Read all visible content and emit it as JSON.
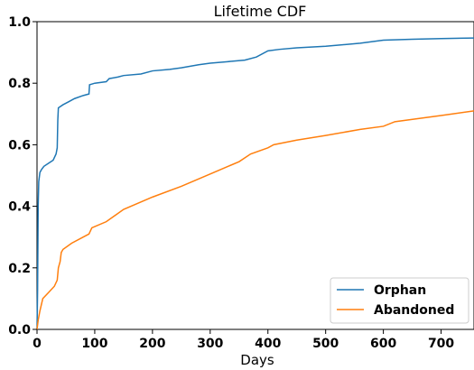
{
  "chart_data": {
    "type": "line",
    "title": "Lifetime CDF",
    "xlabel": "Days",
    "ylabel": "",
    "xlim": [
      0,
      757
    ],
    "ylim": [
      0.0,
      1.0
    ],
    "xticks": [
      "0",
      "100",
      "200",
      "300",
      "400",
      "500",
      "600",
      "700"
    ],
    "yticks": [
      "0.0",
      "0.2",
      "0.4",
      "0.6",
      "0.8",
      "1.0"
    ],
    "grid": false,
    "legend_position": "bottom-right",
    "series": [
      {
        "name": "Orphan",
        "color": "#1f77b4",
        "points": [
          [
            0,
            0.0
          ],
          [
            1,
            0.13
          ],
          [
            2,
            0.4
          ],
          [
            3,
            0.48
          ],
          [
            5,
            0.51
          ],
          [
            8,
            0.52
          ],
          [
            12,
            0.53
          ],
          [
            20,
            0.54
          ],
          [
            28,
            0.55
          ],
          [
            33,
            0.57
          ],
          [
            35,
            0.59
          ],
          [
            36,
            0.68
          ],
          [
            37,
            0.72
          ],
          [
            45,
            0.73
          ],
          [
            55,
            0.74
          ],
          [
            65,
            0.75
          ],
          [
            80,
            0.76
          ],
          [
            90,
            0.765
          ],
          [
            91,
            0.795
          ],
          [
            100,
            0.8
          ],
          [
            120,
            0.805
          ],
          [
            125,
            0.815
          ],
          [
            140,
            0.82
          ],
          [
            150,
            0.825
          ],
          [
            180,
            0.83
          ],
          [
            200,
            0.84
          ],
          [
            230,
            0.845
          ],
          [
            250,
            0.85
          ],
          [
            280,
            0.86
          ],
          [
            300,
            0.865
          ],
          [
            330,
            0.87
          ],
          [
            360,
            0.875
          ],
          [
            380,
            0.885
          ],
          [
            400,
            0.905
          ],
          [
            420,
            0.91
          ],
          [
            450,
            0.915
          ],
          [
            500,
            0.92
          ],
          [
            560,
            0.93
          ],
          [
            600,
            0.94
          ],
          [
            650,
            0.943
          ],
          [
            700,
            0.945
          ],
          [
            757,
            0.947
          ]
        ]
      },
      {
        "name": "Abandoned",
        "color": "#ff7f0e",
        "points": [
          [
            0,
            0.0
          ],
          [
            2,
            0.03
          ],
          [
            5,
            0.06
          ],
          [
            10,
            0.1
          ],
          [
            20,
            0.12
          ],
          [
            30,
            0.14
          ],
          [
            35,
            0.16
          ],
          [
            37,
            0.2
          ],
          [
            40,
            0.22
          ],
          [
            42,
            0.25
          ],
          [
            45,
            0.26
          ],
          [
            60,
            0.28
          ],
          [
            80,
            0.3
          ],
          [
            90,
            0.31
          ],
          [
            95,
            0.33
          ],
          [
            120,
            0.35
          ],
          [
            150,
            0.39
          ],
          [
            200,
            0.43
          ],
          [
            250,
            0.465
          ],
          [
            300,
            0.505
          ],
          [
            350,
            0.545
          ],
          [
            370,
            0.57
          ],
          [
            400,
            0.59
          ],
          [
            410,
            0.6
          ],
          [
            450,
            0.615
          ],
          [
            500,
            0.63
          ],
          [
            560,
            0.65
          ],
          [
            600,
            0.66
          ],
          [
            620,
            0.675
          ],
          [
            700,
            0.695
          ],
          [
            757,
            0.71
          ]
        ]
      }
    ]
  }
}
